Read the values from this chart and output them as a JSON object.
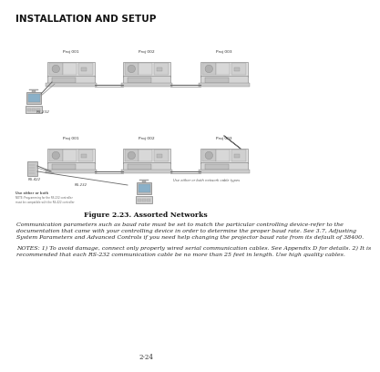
{
  "title": "INSTALLATION AND SETUP",
  "figure_caption": "Figure 2.23. Assorted Networks",
  "body_paragraph": "Communication parameters such as baud rate must be set to match the particular controlling device-refer to the documentation that came with your controlling device in order to determine the proper baud rate. See 3.7, Adjusting System Parameters and Advanced Controls if you need help changing the projector baud rate from its default of 38400.",
  "notes_paragraph": "NOTES:  1) To avoid damage, connect only properly wired serial communication cables. See Appendix D for details.  2) It is recommended that each RS-232 communication cable be no more than 25 feet in length. Use high quality cables.",
  "page_number": "2-24",
  "bg_color": "#ffffff",
  "text_color": "#1a1a1a",
  "diagram_bg": "#f0f0f0",
  "diagram_border": "#bbbbbb",
  "proj_label_1": "Proj 001",
  "proj_label_2": "Proj 002",
  "proj_label_3": "Proj 003",
  "rs232_label": "RS-232",
  "rs422_label": "RS-422",
  "use_either_label": "Use either or both network cable types",
  "use_either_bottom": "Use either or both",
  "note_bottom_1": "NOTE: Programming for the RS-232 controller",
  "note_bottom_2": "must be compatible with the RS-422 controller"
}
